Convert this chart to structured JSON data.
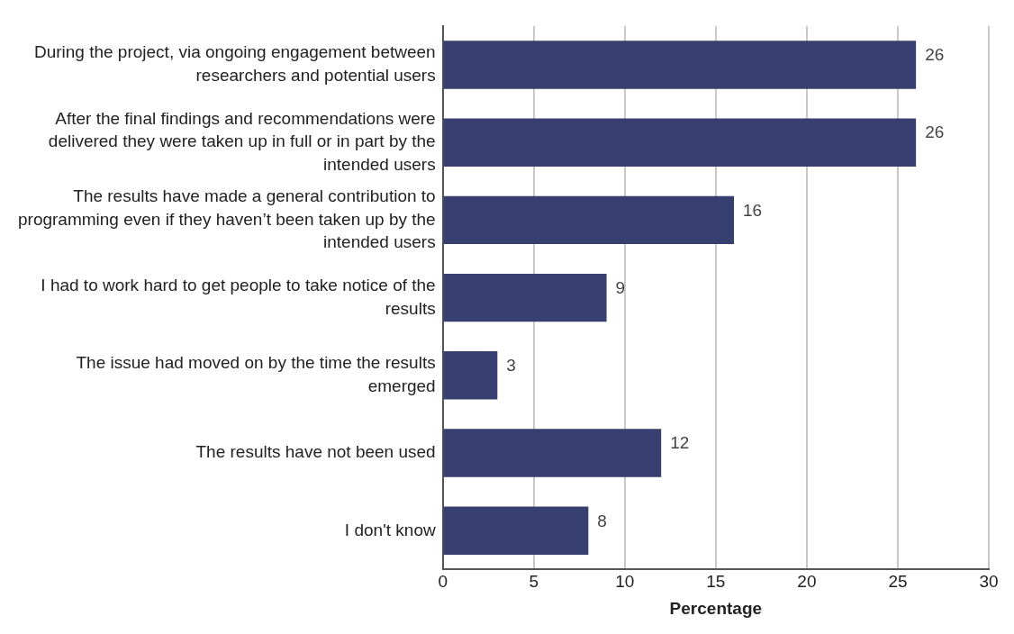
{
  "chart_data": {
    "type": "bar",
    "orientation": "horizontal",
    "xlabel": "Percentage",
    "categories": [
      "During the project, via ongoing engagement between researchers and potential users",
      "After the final findings and recommendations were delivered they were taken up in full or in part by the intended users",
      "The results have made a general contribution to programming even if they haven’t been taken up by the intended users",
      "I had to work hard to get people to take notice of the results",
      "The issue had moved on by the time the results emerged",
      "The results have not been used",
      "I don't know"
    ],
    "values": [
      26,
      26,
      16,
      9,
      3,
      12,
      8
    ],
    "color": "#363f70",
    "xlim": [
      0,
      30
    ],
    "xticks": [
      0,
      5,
      10,
      15,
      20,
      25,
      30
    ],
    "grid": "x",
    "data_labels": true,
    "legend": false
  }
}
